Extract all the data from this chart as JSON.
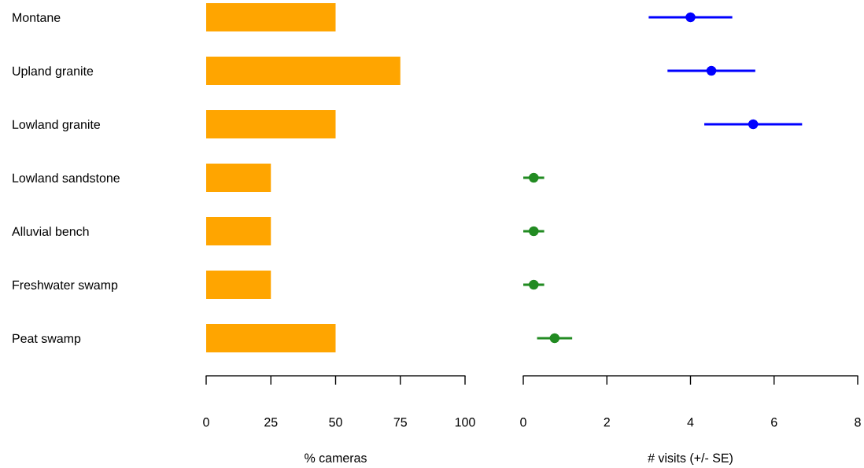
{
  "chart_data": [
    {
      "type": "bar",
      "orientation": "horizontal",
      "categories": [
        "Montane",
        "Upland granite",
        "Lowland granite",
        "Lowland sandstone",
        "Alluvial bench",
        "Freshwater swamp",
        "Peat swamp"
      ],
      "values": [
        50,
        75,
        50,
        25,
        25,
        25,
        50
      ],
      "color": "#ffa500",
      "xlabel": "% cameras",
      "xlim": [
        0,
        100
      ],
      "xticks": [
        0,
        25,
        50,
        75,
        100
      ],
      "grid": false
    },
    {
      "type": "scatter",
      "orientation": "horizontal",
      "categories": [
        null,
        null,
        null,
        null,
        null,
        null,
        null
      ],
      "tick_labels": "x",
      "values": [
        4.0,
        4.5,
        5.5,
        0.25,
        0.25,
        0.25,
        0.75
      ],
      "errors": [
        [
          3.0,
          5.0
        ],
        [
          3.45,
          5.55
        ],
        [
          4.33,
          6.67
        ],
        [
          0.0,
          0.5
        ],
        [
          0.0,
          0.5
        ],
        [
          0.0,
          0.5
        ],
        [
          0.33,
          1.17
        ]
      ],
      "colors": [
        "#0000ff",
        "#0000ff",
        "#0000ff",
        "#228b22",
        "#228b22",
        "#228b22",
        "#228b22"
      ],
      "marker": "circle",
      "xlabel": "# visits (+/- SE)",
      "xlim": [
        0,
        8
      ],
      "xticks": [
        0,
        2,
        4,
        6,
        8
      ],
      "grid": false
    }
  ]
}
